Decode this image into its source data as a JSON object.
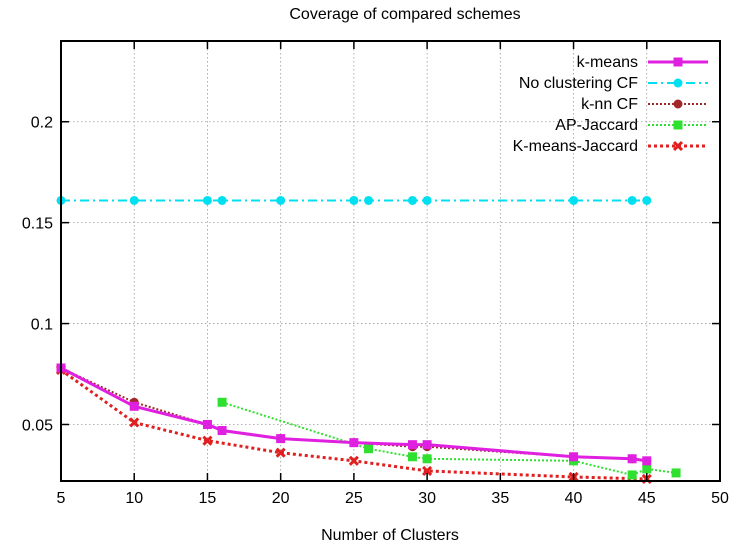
{
  "chart_data": {
    "type": "line",
    "title": "Coverage of compared schemes",
    "xlabel": "Number of Clusters",
    "ylabel": "",
    "xlim": [
      5,
      50
    ],
    "ylim": [
      0.022,
      0.24
    ],
    "xticks": [
      5,
      10,
      15,
      20,
      25,
      30,
      35,
      40,
      45,
      50
    ],
    "yticks": [
      0.05,
      0.1,
      0.15,
      0.2
    ],
    "x_tick_labels": [
      "5",
      "10",
      "15",
      "20",
      "25",
      "30",
      "35",
      "40",
      "45",
      "50"
    ],
    "y_tick_labels": [
      "0.05",
      "0.1",
      "0.15",
      "0.2"
    ],
    "grid": true,
    "legend_position": "top-right",
    "series": [
      {
        "name": "k-means",
        "color": "#e020e0",
        "dash": "solid",
        "marker": "square",
        "x": [
          5,
          10,
          15,
          16,
          20,
          25,
          29,
          30,
          40,
          44,
          45
        ],
        "y": [
          0.078,
          0.059,
          0.05,
          0.047,
          0.043,
          0.041,
          0.04,
          0.04,
          0.034,
          0.033,
          0.032
        ]
      },
      {
        "name": "No clustering CF",
        "color": "#00e0f0",
        "dash": "dash-dot",
        "marker": "circle",
        "x": [
          5,
          10,
          15,
          16,
          20,
          25,
          26,
          29,
          30,
          40,
          44,
          45
        ],
        "y": [
          0.161,
          0.161,
          0.161,
          0.161,
          0.161,
          0.161,
          0.161,
          0.161,
          0.161,
          0.161,
          0.161,
          0.161
        ]
      },
      {
        "name": "k-nn CF",
        "color": "#a02828",
        "dash": "dotted",
        "marker": "circle",
        "x": [
          5,
          10,
          15,
          16,
          20,
          25,
          29,
          30,
          40,
          44,
          45
        ],
        "y": [
          0.078,
          0.061,
          0.05,
          0.047,
          0.043,
          0.041,
          0.039,
          0.039,
          0.034,
          0.033,
          0.032
        ]
      },
      {
        "name": "AP-Jaccard",
        "color": "#30e030",
        "dash": "dotted",
        "marker": "square",
        "x": [
          16,
          26,
          29,
          30,
          40,
          44,
          45,
          47
        ],
        "y": [
          0.061,
          0.038,
          0.034,
          0.033,
          0.032,
          0.025,
          0.028,
          0.026
        ]
      },
      {
        "name": "K-means-Jaccard",
        "color": "#e02020",
        "dash": "dotted-heavy",
        "marker": "x",
        "x": [
          5,
          10,
          15,
          20,
          25,
          30,
          40,
          45
        ],
        "y": [
          0.077,
          0.051,
          0.042,
          0.036,
          0.032,
          0.027,
          0.024,
          0.023
        ]
      }
    ]
  }
}
